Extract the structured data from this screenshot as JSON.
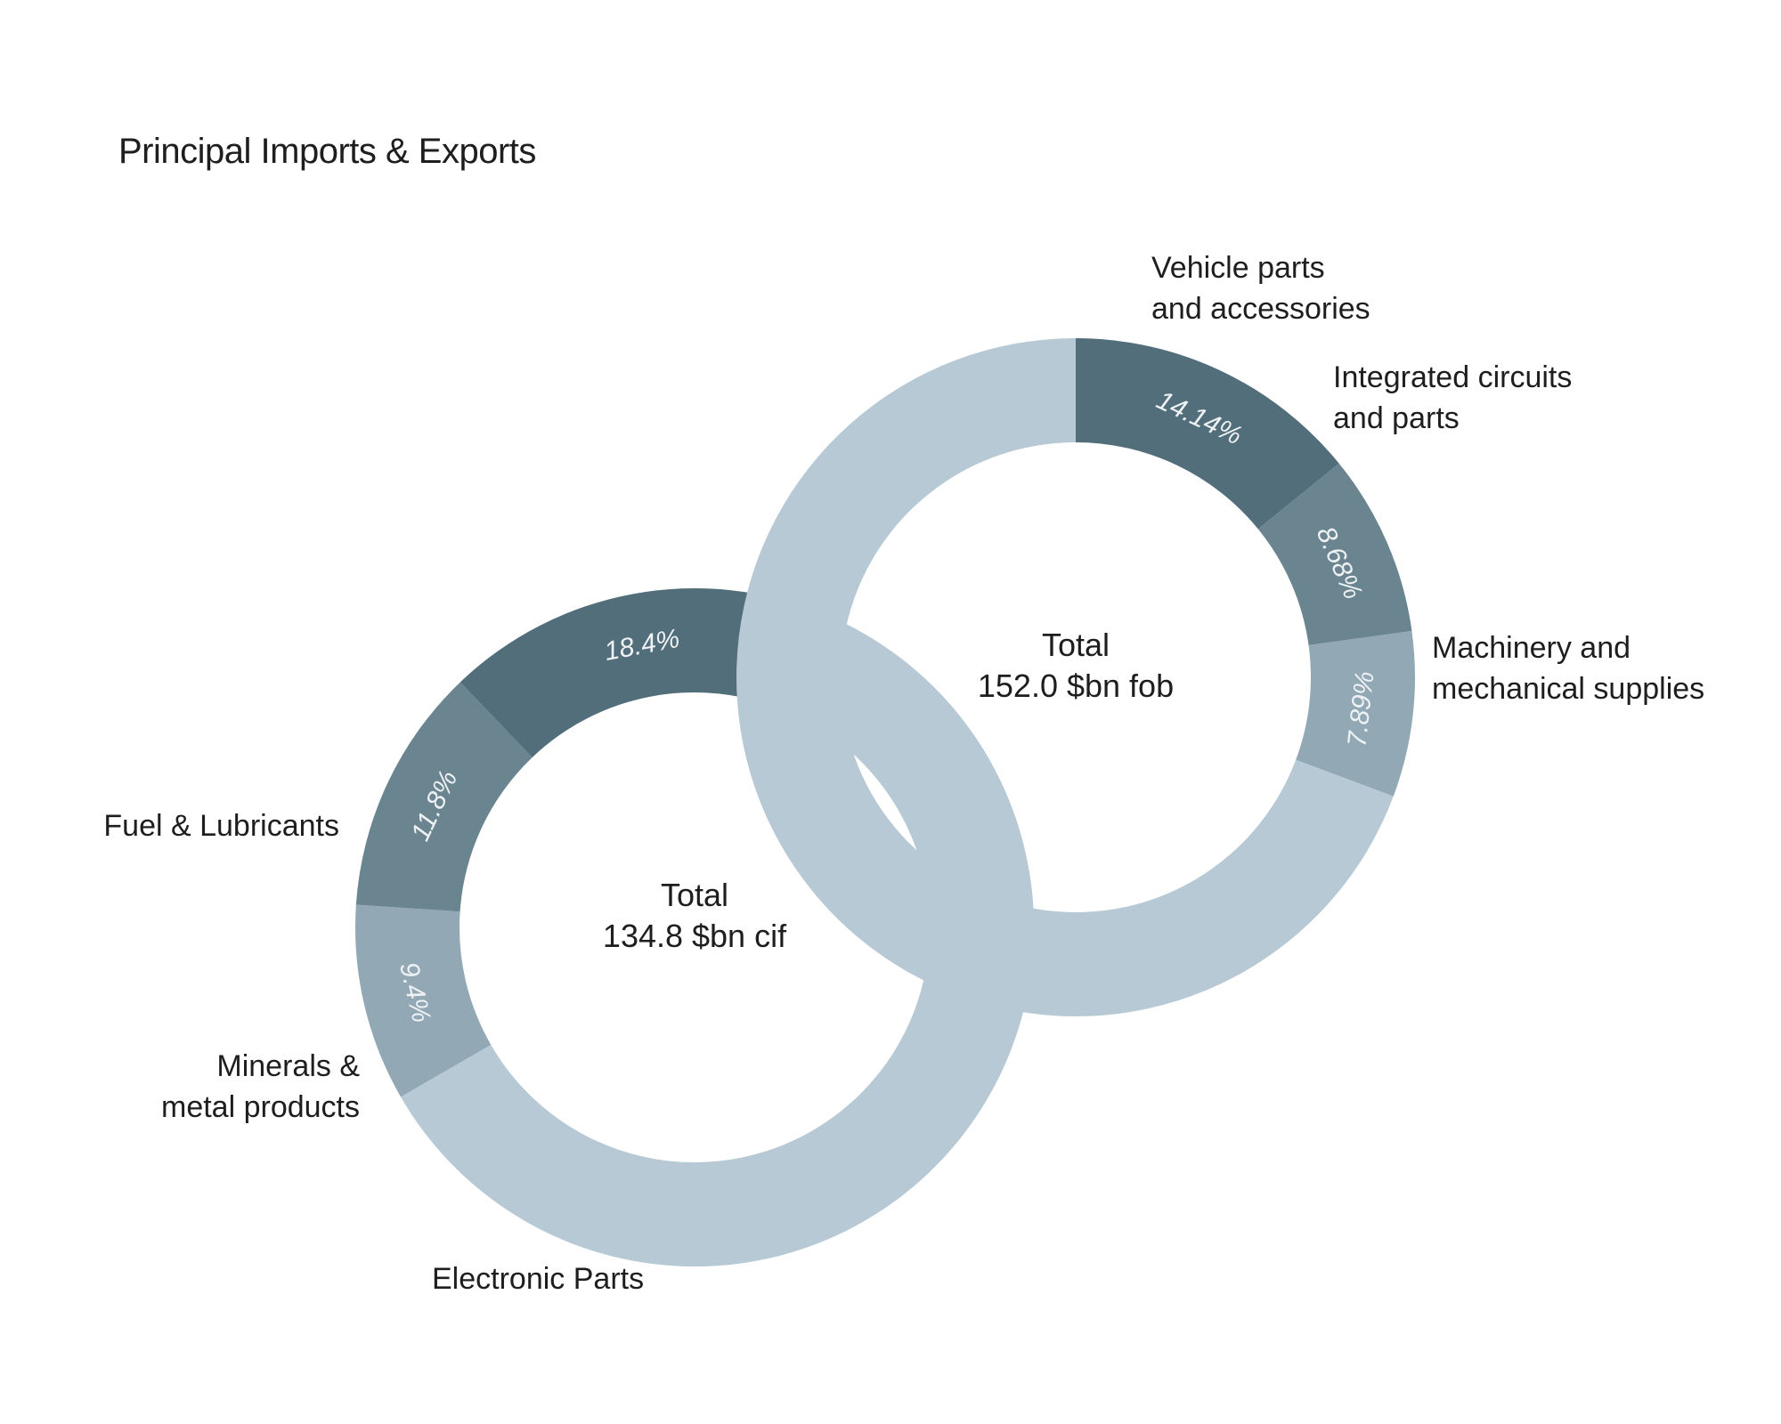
{
  "chart_data": [
    {
      "type": "pie",
      "title": "Principal Imports & Exports",
      "center_label": [
        "Total",
        "152.0 $bn fob"
      ],
      "slices": [
        {
          "label": [
            "Vehicle parts",
            "and accessories"
          ],
          "value": 14.14,
          "value_label": "14.14%",
          "color": "#526e7b"
        },
        {
          "label": [
            "Integrated circuits",
            "and parts"
          ],
          "value": 8.68,
          "value_label": "8.68%",
          "color": "#6b8590"
        },
        {
          "label": [
            "Machinery and",
            "mechanical supplies"
          ],
          "value": 7.89,
          "value_label": "7.89%",
          "color": "#92a9b5"
        },
        {
          "label": [],
          "value": 69.29,
          "value_label": "",
          "color": "#b7c9d4"
        }
      ]
    },
    {
      "type": "pie",
      "center_label": [
        "Total",
        "134.8 $bn cif"
      ],
      "slices": [
        {
          "label": [
            "Fuel & Lubricants"
          ],
          "value": 9.4,
          "value_label": "9.4%",
          "color": "#92a9b5"
        },
        {
          "label": [
            "Minerals &",
            "metal products"
          ],
          "value": 11.8,
          "value_label": "11.8%",
          "color": "#6b8590"
        },
        {
          "label": [
            "Electronic Parts"
          ],
          "value": 18.4,
          "value_label": "18.4%",
          "color": "#526e7b"
        },
        {
          "label": [],
          "value": 60.4,
          "value_label": "",
          "color": "#b7c9d4"
        }
      ]
    }
  ]
}
